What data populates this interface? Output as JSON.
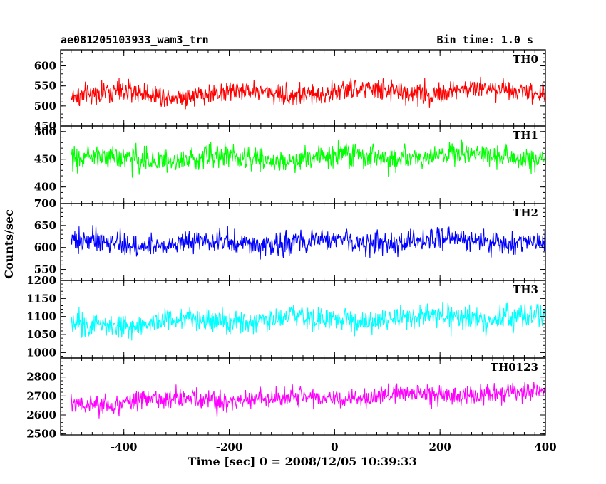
{
  "header": {
    "title": "ae081205103933_wam3_trn",
    "bin_time": "Bin time: 1.0 s"
  },
  "chart_data": {
    "type": "line",
    "title": "ae081205103933_wam3_trn",
    "subtitle": "Bin time: 1.0 s",
    "xlabel": "Time [sec] 0 = 2008/12/05 10:39:33",
    "ylabel": "Counts/sec",
    "xlim": [
      -520,
      400
    ],
    "x_ticks": [
      "-400",
      "-200",
      "0",
      "200",
      "400"
    ],
    "x_tick_values": [
      -400,
      -200,
      0,
      200,
      400
    ],
    "x_start": -500,
    "x_end": 400,
    "x_step": 1,
    "grid": false,
    "panels": [
      {
        "name": "TH0",
        "color": "#ff0000",
        "ylim": [
          450,
          640
        ],
        "y_ticks": [
          "450",
          "500",
          "550",
          "600"
        ],
        "y_tick_values": [
          450,
          500,
          550,
          600
        ],
        "mean_start": 528,
        "mean_end": 540,
        "sigma": 27
      },
      {
        "name": "TH1",
        "color": "#00ff00",
        "ylim": [
          370,
          510
        ],
        "y_ticks": [
          "400",
          "450",
          "500"
        ],
        "y_tick_values": [
          400,
          450,
          500
        ],
        "mean_start": 450,
        "mean_end": 456,
        "sigma": 21
      },
      {
        "name": "TH2",
        "color": "#0000ff",
        "ylim": [
          525,
          700
        ],
        "y_ticks": [
          "550",
          "600",
          "650",
          "700"
        ],
        "y_tick_values": [
          550,
          600,
          650,
          700
        ],
        "mean_start": 610,
        "mean_end": 614,
        "sigma": 25
      },
      {
        "name": "TH3",
        "color": "#00ffff",
        "ylim": [
          985,
          1200
        ],
        "y_ticks": [
          "1000",
          "1050",
          "1100",
          "1150",
          "1200"
        ],
        "y_tick_values": [
          1000,
          1050,
          1100,
          1150,
          1200
        ],
        "mean_start": 1080,
        "mean_end": 1100,
        "sigma": 33
      },
      {
        "name": "TH0123",
        "color": "#ff00ff",
        "ylim": [
          2495,
          2900
        ],
        "y_ticks": [
          "2500",
          "2600",
          "2700",
          "2800"
        ],
        "y_tick_values": [
          2500,
          2600,
          2700,
          2800
        ],
        "mean_start": 2660,
        "mean_end": 2720,
        "sigma": 52
      }
    ]
  }
}
